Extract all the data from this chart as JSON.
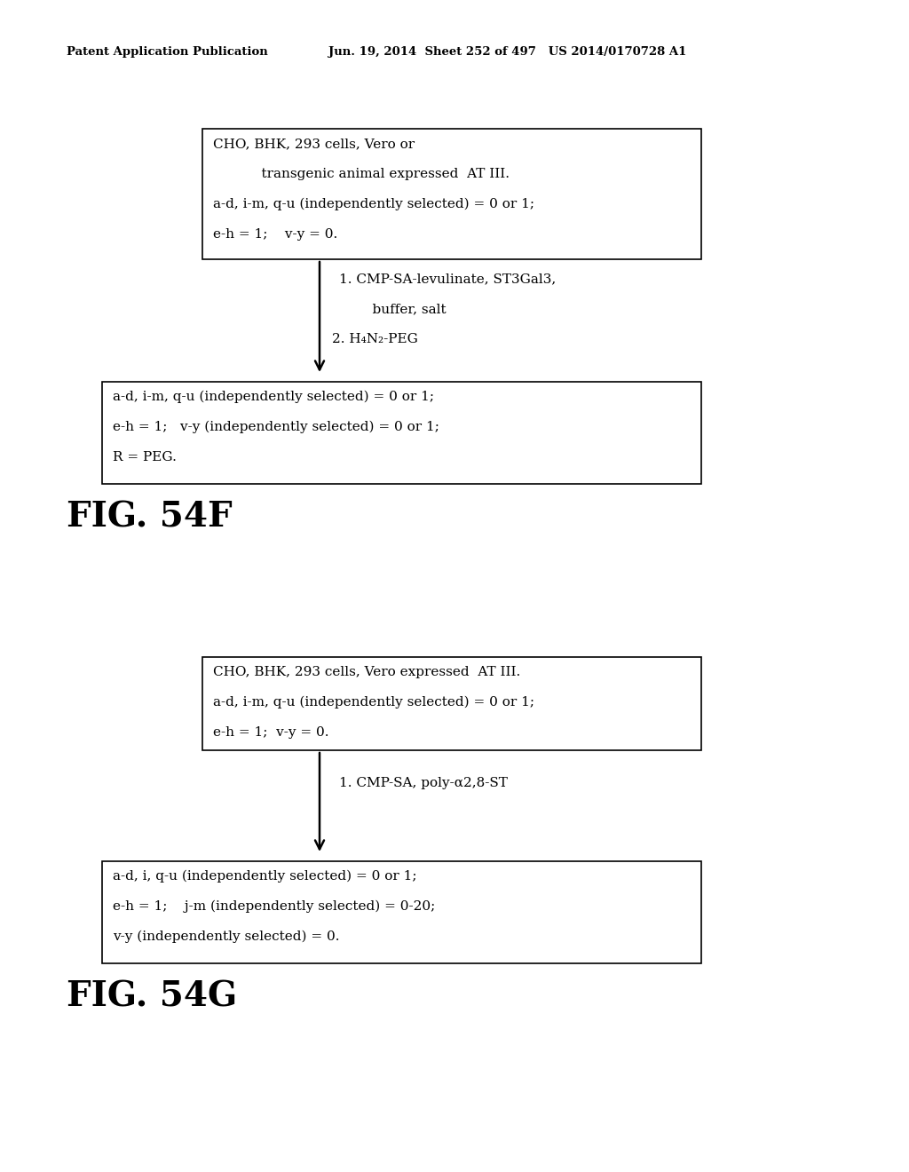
{
  "header_left": "Patent Application Publication",
  "header_right": "Jun. 19, 2014  Sheet 252 of 497   US 2014/0170728 A1",
  "bg_color": "#ffffff",
  "fig54f": {
    "label": "FIG. 54F",
    "box1_lines": [
      "CHO, BHK, 293 cells, Vero or",
      "    transgenic animal expressed  AT III.",
      "a-d, i-m, q-u (independently selected) = 0 or 1;",
      "e-h = 1;    v-y = 0."
    ],
    "arrow_text_lines": [
      "1. CMP-SA-levulinate, ST3Gal3,",
      "    buffer, salt",
      "2. H₄N₂-PEG"
    ],
    "box2_lines": [
      "a-d, i-m, q-u (independently selected) = 0 or 1;",
      "e-h = 1;   v-y (independently selected) = 0 or 1;",
      "R = PEG."
    ]
  },
  "fig54g": {
    "label": "FIG. 54G",
    "box1_lines": [
      "CHO, BHK, 293 cells, Vero expressed  AT III.",
      "a-d, i-m, q-u (independently selected) = 0 or 1;",
      "e-h = 1;  v-y = 0."
    ],
    "arrow_text_lines": [
      "1. CMP-SA, poly-α2,8-ST"
    ],
    "box2_lines": [
      "a-d, i, q-u (independently selected) = 0 or 1;",
      "e-h = 1;    j-m (independently selected) = 0-20;",
      "v-y (independently selected) = 0."
    ]
  }
}
